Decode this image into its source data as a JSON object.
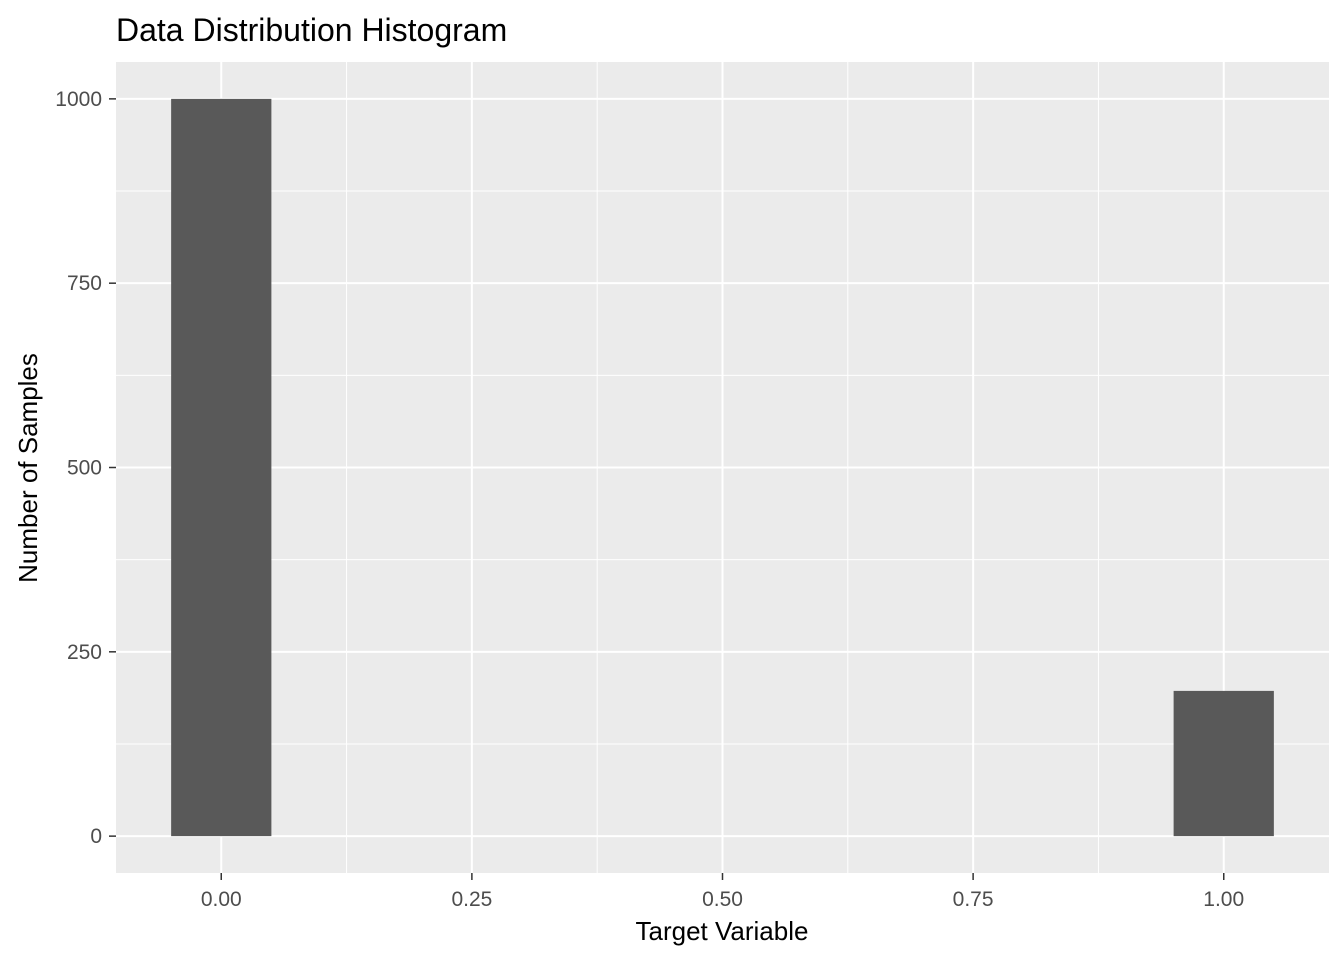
{
  "chart_data": {
    "type": "bar",
    "title": "Data Distribution Histogram",
    "xlabel": "Target Variable",
    "ylabel": "Number of Samples",
    "x": [
      0.0,
      1.0
    ],
    "values": [
      1000,
      197
    ],
    "bin_width": 0.1,
    "xlim": [
      -0.105,
      1.105
    ],
    "ylim": [
      -50,
      1050
    ],
    "x_ticks": [
      0.0,
      0.25,
      0.5,
      0.75,
      1.0
    ],
    "x_tick_labels": [
      "0.00",
      "0.25",
      "0.50",
      "0.75",
      "1.00"
    ],
    "y_ticks": [
      0,
      250,
      500,
      750,
      1000
    ],
    "y_tick_labels": [
      "0",
      "250",
      "500",
      "750",
      "1000"
    ],
    "grid": true,
    "legend": "none",
    "colors": {
      "bar": "#595959",
      "panel": "#ebebeb",
      "grid": "#ffffff"
    }
  }
}
